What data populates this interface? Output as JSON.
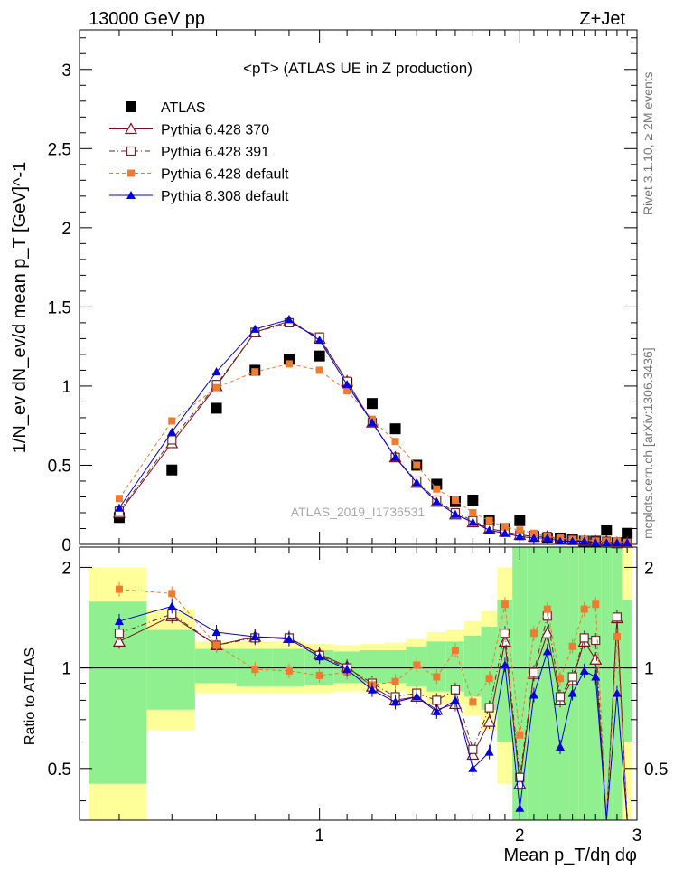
{
  "header": {
    "left": "13000 GeV pp",
    "right": "Z+Jet",
    "side_top": "Rivet 3.1.10, ≥ 2M events",
    "side_bottom": "mcplots.cern.ch [arXiv:1306.3436]",
    "watermark": "ATLAS_2019_I1736531"
  },
  "colors": {
    "atlas": "#000000",
    "p370": "#7a1020",
    "p391": "#6b2a2a",
    "p6def": "#f07a30",
    "p8def": "#0000dd",
    "band_inner": "#90f090",
    "band_outer": "#ffff99"
  },
  "chart_data": [
    {
      "type": "scatter",
      "title": "<pT>  (ATLAS UE in Z production)",
      "xlabel": "",
      "ylabel": "1/N_ev dN_ev/d mean p_T [GeV]^-1",
      "xlim": [
        0.4358,
        3.0
      ],
      "ylim": [
        0,
        3.25
      ],
      "x_ticks": [
        "1",
        "2",
        "3"
      ],
      "y_ticks": [
        "0",
        "0.5",
        "1",
        "1.5",
        "2",
        "2.5",
        "3"
      ],
      "legend_position": "top-left",
      "series": [
        {
          "name": "ATLAS",
          "x": [
            0.5,
            0.6,
            0.7,
            0.8,
            0.9,
            1.0,
            1.1,
            1.2,
            1.3,
            1.4,
            1.5,
            1.6,
            1.7,
            1.8,
            1.9,
            2.0,
            2.1,
            2.2,
            2.3,
            2.4,
            2.5,
            2.6,
            2.7,
            2.8,
            2.9
          ],
          "values": [
            0.17,
            0.47,
            0.86,
            1.1,
            1.17,
            1.19,
            1.02,
            0.89,
            0.73,
            0.5,
            0.38,
            0.27,
            0.28,
            0.15,
            0.1,
            0.15,
            0.05,
            0.04,
            0.04,
            0.03,
            0.02,
            0.02,
            0.09,
            0.01,
            0.07
          ]
        },
        {
          "name": "Pythia 6.428 370",
          "x": [
            0.5,
            0.6,
            0.7,
            0.8,
            0.9,
            1.0,
            1.1,
            1.2,
            1.3,
            1.4,
            1.5,
            1.6,
            1.7,
            1.8,
            1.9,
            2.0,
            2.1,
            2.2,
            2.3,
            2.4,
            2.5,
            2.6,
            2.7,
            2.8,
            2.9
          ],
          "values": [
            0.2,
            0.64,
            1.0,
            1.34,
            1.41,
            1.3,
            1.03,
            0.77,
            0.55,
            0.39,
            0.27,
            0.19,
            0.14,
            0.1,
            0.08,
            0.06,
            0.05,
            0.05,
            0.03,
            0.03,
            0.02,
            0.02,
            0.02,
            0.01,
            0.01
          ]
        },
        {
          "name": "Pythia 6.428 391",
          "x": [
            0.5,
            0.6,
            0.7,
            0.8,
            0.9,
            1.0,
            1.1,
            1.2,
            1.3,
            1.4,
            1.5,
            1.6,
            1.7,
            1.8,
            1.9,
            2.0,
            2.1,
            2.2,
            2.3,
            2.4,
            2.5,
            2.6,
            2.7,
            2.8,
            2.9
          ],
          "values": [
            0.21,
            0.66,
            1.01,
            1.34,
            1.4,
            1.31,
            1.03,
            0.77,
            0.55,
            0.4,
            0.28,
            0.2,
            0.15,
            0.1,
            0.08,
            0.06,
            0.05,
            0.05,
            0.03,
            0.03,
            0.02,
            0.02,
            0.02,
            0.01,
            0.01
          ]
        },
        {
          "name": "Pythia 6.428 default",
          "x": [
            0.5,
            0.6,
            0.7,
            0.8,
            0.9,
            1.0,
            1.1,
            1.2,
            1.3,
            1.4,
            1.5,
            1.6,
            1.7,
            1.8,
            1.9,
            2.0,
            2.1,
            2.2,
            2.3,
            2.4,
            2.5,
            2.6,
            2.7,
            2.8,
            2.9
          ],
          "values": [
            0.29,
            0.78,
            0.99,
            1.09,
            1.14,
            1.1,
            0.97,
            0.79,
            0.65,
            0.5,
            0.35,
            0.28,
            0.2,
            0.15,
            0.11,
            0.09,
            0.07,
            0.05,
            0.04,
            0.03,
            0.03,
            0.02,
            0.02,
            0.02,
            0.01
          ]
        },
        {
          "name": "Pythia 8.308 default",
          "x": [
            0.5,
            0.6,
            0.7,
            0.8,
            0.9,
            1.0,
            1.1,
            1.2,
            1.3,
            1.4,
            1.5,
            1.6,
            1.7,
            1.8,
            1.9,
            2.0,
            2.1,
            2.2,
            2.3,
            2.4,
            2.5,
            2.6,
            2.7,
            2.8,
            2.9
          ],
          "values": [
            0.23,
            0.71,
            1.09,
            1.36,
            1.42,
            1.29,
            1.01,
            0.77,
            0.55,
            0.39,
            0.27,
            0.19,
            0.14,
            0.09,
            0.07,
            0.05,
            0.04,
            0.04,
            0.02,
            0.02,
            0.02,
            0.01,
            0.01,
            0.01,
            0.01
          ]
        }
      ]
    },
    {
      "type": "scatter",
      "title": "",
      "xlabel": "Mean p_T/dη dφ",
      "ylabel": "Ratio to ATLAS",
      "xlim": [
        0.4358,
        3.0
      ],
      "ylim": [
        0.35,
        2.3
      ],
      "x_ticks": [
        "1",
        "2",
        "3"
      ],
      "y_ticks": [
        "0.5",
        "1",
        "2"
      ],
      "bands": {
        "x_edges": [
          0.45,
          0.55,
          0.65,
          0.75,
          0.85,
          0.95,
          1.05,
          1.15,
          1.25,
          1.35,
          1.45,
          1.55,
          1.65,
          1.75,
          1.85,
          1.95,
          2.05,
          2.15,
          2.25,
          2.35,
          2.45,
          2.55,
          2.65,
          2.75,
          2.85,
          2.95
        ],
        "inner_low": [
          0.45,
          0.75,
          0.9,
          0.88,
          0.88,
          0.89,
          0.9,
          0.9,
          0.9,
          0.88,
          0.85,
          0.85,
          0.82,
          0.75,
          0.6,
          0.35,
          0.35,
          0.35,
          0.35,
          0.35,
          0.35,
          0.35,
          0.35,
          0.35,
          0.6
        ],
        "inner_high": [
          1.58,
          1.3,
          1.14,
          1.14,
          1.14,
          1.13,
          1.12,
          1.13,
          1.13,
          1.16,
          1.2,
          1.2,
          1.25,
          1.33,
          1.6,
          2.3,
          2.3,
          2.3,
          2.3,
          2.3,
          2.3,
          2.3,
          2.3,
          2.3,
          1.6
        ],
        "outer_low": [
          0.35,
          0.65,
          0.84,
          0.84,
          0.84,
          0.84,
          0.85,
          0.85,
          0.85,
          0.82,
          0.78,
          0.78,
          0.72,
          0.65,
          0.45,
          0.35,
          0.35,
          0.35,
          0.35,
          0.35,
          0.35,
          0.35,
          0.35,
          0.35,
          0.35
        ],
        "outer_high": [
          2.0,
          1.5,
          1.2,
          1.2,
          1.2,
          1.18,
          1.17,
          1.18,
          1.19,
          1.22,
          1.28,
          1.3,
          1.38,
          1.48,
          2.0,
          2.3,
          2.3,
          2.3,
          2.3,
          2.3,
          2.3,
          2.3,
          2.3,
          2.3,
          2.3
        ]
      },
      "series": [
        {
          "name": "Pythia 6.428 370",
          "x": [
            0.5,
            0.6,
            0.7,
            0.8,
            0.9,
            1.0,
            1.1,
            1.2,
            1.3,
            1.4,
            1.5,
            1.6,
            1.7,
            1.8,
            1.9,
            2.0,
            2.1,
            2.2,
            2.3,
            2.4,
            2.5,
            2.6,
            2.7,
            2.8,
            2.9
          ],
          "values": [
            1.2,
            1.43,
            1.17,
            1.24,
            1.23,
            1.1,
            1.01,
            0.88,
            0.8,
            0.82,
            0.75,
            0.78,
            0.55,
            0.69,
            1.2,
            0.45,
            0.96,
            1.27,
            0.8,
            0.92,
            1.2,
            1.06,
            0.3,
            1.41,
            0.3
          ]
        },
        {
          "name": "Pythia 6.428 391",
          "x": [
            0.5,
            0.6,
            0.7,
            0.8,
            0.9,
            1.0,
            1.1,
            1.2,
            1.3,
            1.4,
            1.5,
            1.6,
            1.7,
            1.8,
            1.9,
            2.0,
            2.1,
            2.2,
            2.3,
            2.4,
            2.5,
            2.6,
            2.7,
            2.8,
            2.9
          ],
          "values": [
            1.27,
            1.45,
            1.17,
            1.23,
            1.23,
            1.09,
            1.0,
            0.9,
            0.82,
            0.84,
            0.8,
            0.86,
            0.57,
            0.76,
            1.27,
            0.47,
            0.97,
            1.43,
            0.82,
            0.94,
            1.23,
            1.21,
            0.3,
            1.42,
            0.3
          ]
        },
        {
          "name": "Pythia 6.428 default",
          "x": [
            0.5,
            0.6,
            0.7,
            0.8,
            0.9,
            1.0,
            1.1,
            1.2,
            1.3,
            1.4,
            1.5,
            1.6,
            1.7,
            1.8,
            1.9,
            2.0,
            2.1,
            2.2,
            2.3,
            2.4,
            2.5,
            2.6,
            2.7,
            2.8,
            2.9
          ],
          "values": [
            1.72,
            1.67,
            1.17,
            0.99,
            0.98,
            0.95,
            0.97,
            0.89,
            0.91,
            1.02,
            0.94,
            1.13,
            0.79,
            0.93,
            1.55,
            0.63,
            1.27,
            1.5,
            0.93,
            1.16,
            1.5,
            1.55,
            0.3,
            1.24,
            0.3
          ]
        },
        {
          "name": "Pythia 8.308 default",
          "x": [
            0.5,
            0.6,
            0.7,
            0.8,
            0.9,
            1.0,
            1.1,
            1.2,
            1.3,
            1.4,
            1.5,
            1.6,
            1.7,
            1.8,
            1.9,
            2.0,
            2.1,
            2.2,
            2.3,
            2.4,
            2.5,
            2.6,
            2.7,
            2.8,
            2.9
          ],
          "values": [
            1.38,
            1.53,
            1.28,
            1.24,
            1.22,
            1.08,
            0.99,
            0.86,
            0.79,
            0.82,
            0.74,
            0.8,
            0.5,
            0.56,
            1.02,
            0.38,
            0.83,
            1.12,
            0.58,
            0.84,
            0.98,
            0.94,
            0.3,
            0.84,
            0.3
          ]
        }
      ]
    }
  ]
}
